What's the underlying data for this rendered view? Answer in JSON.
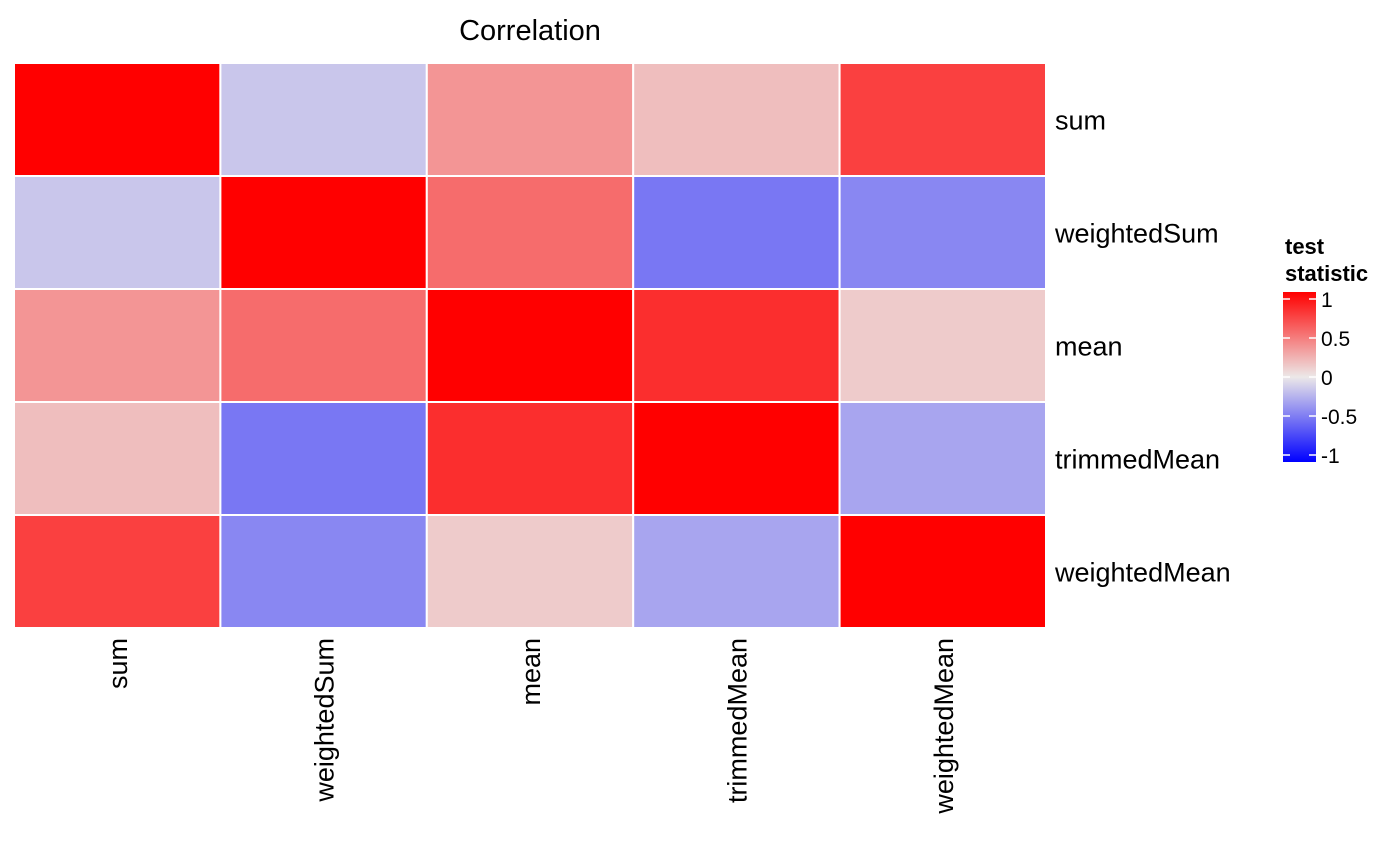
{
  "chart_data": {
    "type": "heatmap",
    "title": "Correlation",
    "rows": [
      "sum",
      "weightedSum",
      "mean",
      "trimmedMean",
      "weightedMean"
    ],
    "columns": [
      "sum",
      "weightedSum",
      "mean",
      "trimmedMean",
      "weightedMean"
    ],
    "values": [
      [
        1.0,
        -0.12,
        0.32,
        0.15,
        0.7
      ],
      [
        -0.12,
        1.0,
        0.5,
        -0.45,
        -0.38
      ],
      [
        0.32,
        0.5,
        1.0,
        0.78,
        0.1
      ],
      [
        0.15,
        -0.45,
        0.78,
        1.0,
        -0.25
      ],
      [
        0.7,
        -0.38,
        0.1,
        -0.25,
        1.0
      ]
    ],
    "color_scale": {
      "low": "#0000ff",
      "mid": "#ece8e8",
      "high": "#ff0000",
      "limits": [
        -1,
        1
      ]
    },
    "legend": {
      "title": [
        "test",
        "statistic"
      ],
      "ticks": [
        "1",
        "0.5",
        "0",
        "-0.5",
        "-1"
      ],
      "tick_values": [
        1,
        0.5,
        0,
        -0.5,
        -1
      ],
      "position": "right"
    },
    "grid": false
  }
}
